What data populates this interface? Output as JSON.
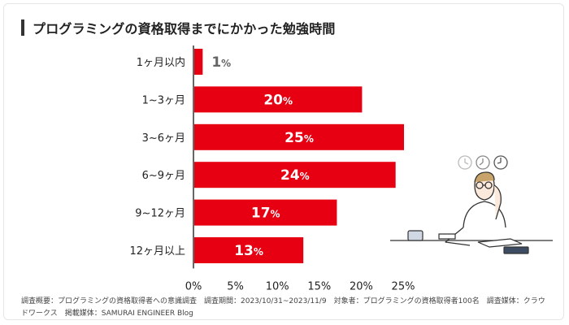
{
  "title": "プログラミングの資格取得までにかかった勉強時間",
  "chart_data": {
    "type": "bar",
    "orientation": "horizontal",
    "categories": [
      "1ヶ月以内",
      "1~3ヶ月",
      "3~6ヶ月",
      "6~9ヶ月",
      "9~12ヶ月",
      "12ヶ月以上"
    ],
    "values": [
      1,
      20,
      25,
      24,
      17,
      13
    ],
    "value_suffix": "%",
    "xlim": [
      0,
      25
    ],
    "xticks": [
      "0%",
      "5%",
      "10%",
      "15%",
      "20%",
      "25%"
    ],
    "bar_color": "#e60012",
    "grid": false
  },
  "footer": {
    "line1": "調査概要：プログラミングの資格取得者への意識調査　調査期間：2023/10/31~2023/11/9　対象者：プログラミングの資格取得者100名　調査媒体：クラウ",
    "line2": "ドワークス　掲載媒体：SAMURAI ENGINEER Blog"
  }
}
